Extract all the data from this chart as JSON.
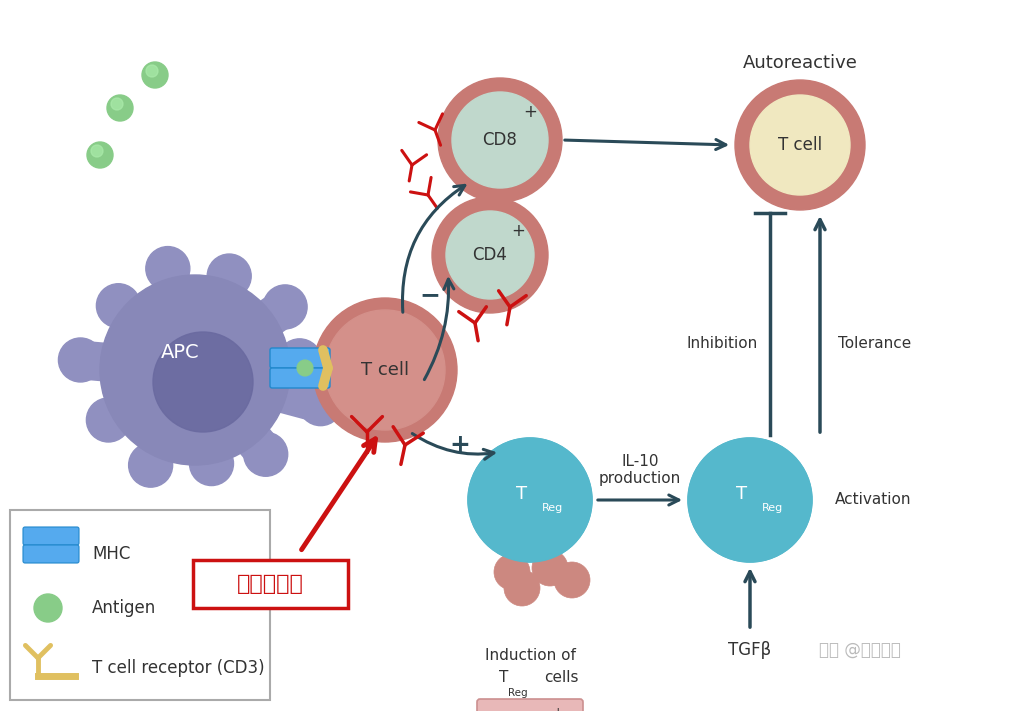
{
  "bg_color": "#ffffff",
  "apc_color": "#9090c0",
  "apc_body_color": "#8888b8",
  "apc_nucleus_color": "#6a6aa0",
  "tcell_outer": "#c87a74",
  "tcell_inner": "#d4908a",
  "cd_outer": "#c87a74",
  "cd_inner": "#c0d8cc",
  "treg_color": "#55b8cc",
  "auto_outer": "#c87a74",
  "auto_inner": "#f0e8c0",
  "antigen_color": "#88cc88",
  "antigen_edge": "#55aa55",
  "mhc_color": "#55aaee",
  "mhc_edge": "#2288cc",
  "receptor_color": "#e0c060",
  "receptor_edge": "#c09820",
  "arrow_dark": "#2a4a58",
  "red_color": "#cc1111",
  "red_dark": "#aa0000",
  "foxp3_bg": "#e8b8b8",
  "foxp3_edge": "#cc9090",
  "legend_edge": "#aaaaaa",
  "watermark_color": "#bbbbbb",
  "small_cell_color": "#cc8880",
  "small_cell_edge": "#aa6060",
  "tep_label": "泰普利单抗",
  "label_apc": "APC",
  "label_tcell": "T cell",
  "label_autoreactive": "Autoreactive",
  "label_inhibition": "Inhibition",
  "label_tolerance": "Tolerance",
  "label_activation": "Activation",
  "label_il10": "IL-10\nproduction",
  "label_tgfb": "TGFβ",
  "label_mhc": "MHC",
  "label_antigen": "Antigen",
  "label_receptor": "T cell receptor (CD3)",
  "watermark": "知乎 @肘恩记药",
  "minus_sign": "−",
  "plus_sign": "+"
}
